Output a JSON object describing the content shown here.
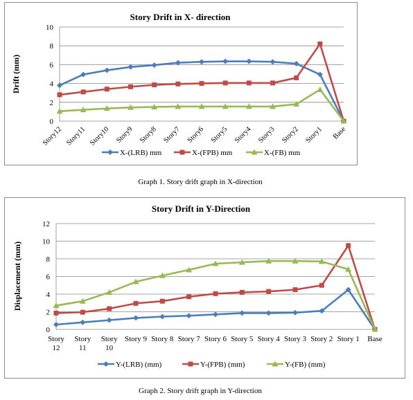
{
  "chart_data": [
    {
      "type": "line",
      "title": "Story Drift in X- direction",
      "xlabel": "",
      "ylabel": "Drift (mm)",
      "ylim": [
        0,
        10
      ],
      "yticks": [
        "0",
        "2",
        "4",
        "6",
        "8",
        "10"
      ],
      "categories": [
        "Story12",
        "Story11",
        "Story10",
        "Story9",
        "Story8",
        "Story7",
        "Story6",
        "Story5",
        "Story4",
        "Story3",
        "Story2",
        "Story1",
        "Base"
      ],
      "grid": true,
      "legend": "bottom",
      "series": [
        {
          "name": "X-(LRB) mm",
          "color": "#4a7ebb",
          "marker": "diamond",
          "values": [
            3.8,
            4.95,
            5.4,
            5.75,
            5.95,
            6.2,
            6.3,
            6.35,
            6.35,
            6.3,
            6.1,
            4.95,
            0
          ]
        },
        {
          "name": "X-(FPB) mm",
          "color": "#be4b48",
          "marker": "square",
          "values": [
            2.8,
            3.1,
            3.4,
            3.65,
            3.85,
            3.95,
            4.0,
            4.05,
            4.05,
            4.05,
            4.6,
            8.2,
            0
          ]
        },
        {
          "name": "X-(FB) mm",
          "color": "#98b954",
          "marker": "triangle",
          "values": [
            1.05,
            1.2,
            1.35,
            1.45,
            1.5,
            1.55,
            1.55,
            1.55,
            1.55,
            1.55,
            1.8,
            3.35,
            0
          ]
        }
      ]
    },
    {
      "type": "line",
      "title": "Story Drift in Y-Direction",
      "xlabel": "",
      "ylabel": "Displacement (mm)",
      "ylim": [
        0,
        12
      ],
      "yticks": [
        "0",
        "2",
        "4",
        "6",
        "8",
        "10",
        "12"
      ],
      "categories": [
        [
          "Story",
          "12"
        ],
        [
          "Story",
          "11"
        ],
        [
          "Story",
          "10"
        ],
        [
          "Story 9"
        ],
        [
          "Story 8"
        ],
        [
          "Story 7"
        ],
        [
          "Story 6"
        ],
        [
          "Story 5"
        ],
        [
          "Story 4"
        ],
        [
          "Story 3"
        ],
        [
          "Story 2"
        ],
        [
          "Story 1"
        ],
        [
          "Base"
        ]
      ],
      "grid": true,
      "legend": "bottom",
      "series": [
        {
          "name": "Y-(LRB) (mm)",
          "color": "#4a7ebb",
          "marker": "diamond",
          "values": [
            0.55,
            0.8,
            1.05,
            1.3,
            1.45,
            1.55,
            1.7,
            1.85,
            1.85,
            1.9,
            2.1,
            4.5,
            0
          ]
        },
        {
          "name": "Y-(FPB) (mm)",
          "color": "#be4b48",
          "marker": "square",
          "values": [
            1.85,
            1.95,
            2.35,
            2.95,
            3.2,
            3.7,
            4.05,
            4.2,
            4.3,
            4.5,
            5.0,
            9.5,
            0
          ]
        },
        {
          "name": "Y-(FB) (mm)",
          "color": "#98b954",
          "marker": "triangle",
          "values": [
            2.7,
            3.2,
            4.2,
            5.4,
            6.1,
            6.75,
            7.45,
            7.6,
            7.75,
            7.75,
            7.7,
            6.8,
            0
          ]
        }
      ]
    }
  ],
  "captions": {
    "graph1": "Graph 1. Story drift graph in X-direction",
    "graph2": "Graph 2. Story drift graph in Y-direction"
  }
}
